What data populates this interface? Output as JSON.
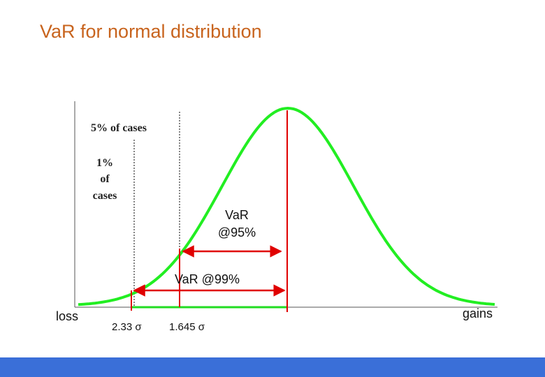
{
  "title": "VaR for normal distribution",
  "annotations": {
    "five_percent": "5% of cases",
    "one_percent": [
      "1%",
      "of",
      "cases"
    ],
    "var95": [
      "VaR",
      "@95%"
    ],
    "var99": "VaR @99%"
  },
  "axis": {
    "left": "loss",
    "right": "gains",
    "ticks": [
      "2.33 σ",
      "1.645 σ"
    ]
  }
}
